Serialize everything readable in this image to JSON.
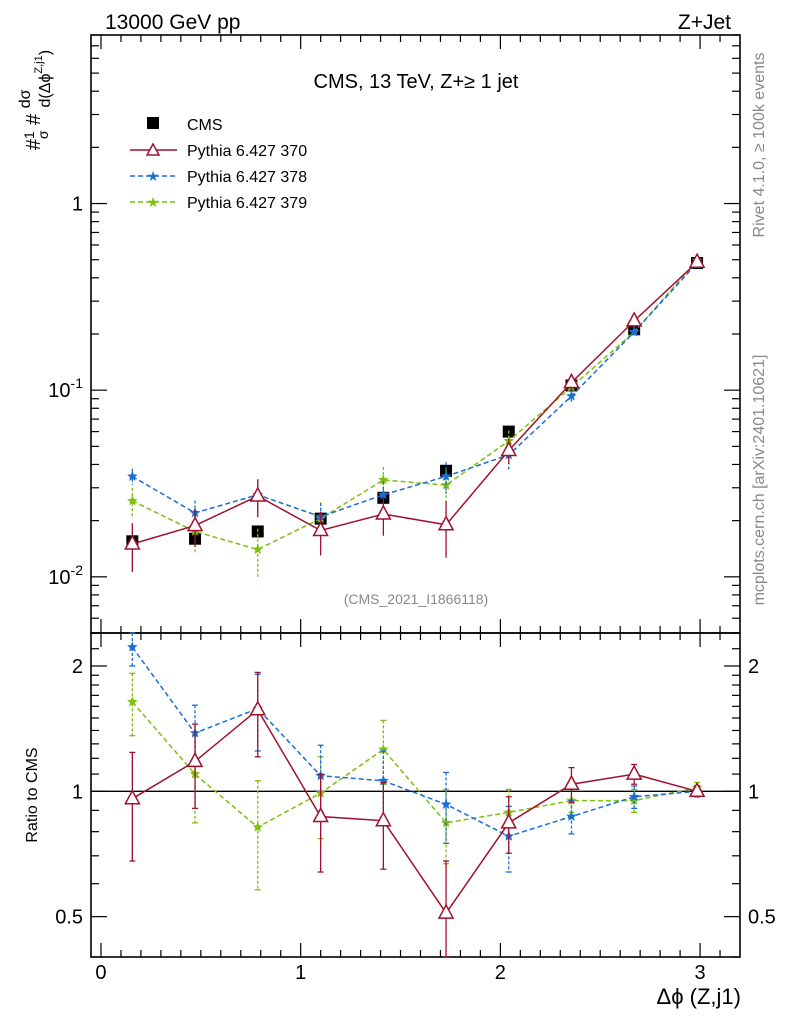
{
  "header": {
    "energy": "13000 GeV pp",
    "process": "Z+Jet"
  },
  "side": {
    "rivet": "Rivet 4.1.0, ≥ 100k events",
    "mcplots": "mcplots.cern.ch [arXiv:2401.10621]"
  },
  "chart_data": {
    "type": "line",
    "title": "CMS, 13 TeV, Z+≥ 1 jet",
    "analysis": "(CMS_2021_I1866118)",
    "xlabel": "Δϕ (Z,j1)",
    "ylabel": "#1/σ # dσ/d(Δϕ^{Z,j1})",
    "ratio_ylabel": "Ratio to CMS",
    "xlim": [
      -0.05,
      3.2
    ],
    "ylim": [
      0.005,
      8
    ],
    "yscale": "log",
    "ratio_ylim": [
      0.4,
      2.4
    ],
    "x_ticks": [
      "0",
      "1",
      "2",
      "3"
    ],
    "y_ticks": [
      "10^-2",
      "10^-1",
      "1"
    ],
    "ratio_ticks": [
      "0.5",
      "1",
      "2"
    ],
    "x": [
      0.157,
      0.471,
      0.785,
      1.1,
      1.414,
      1.728,
      2.042,
      2.356,
      2.67,
      2.985
    ],
    "data": {
      "name": "CMS",
      "values": [
        0.0155,
        0.016,
        0.0175,
        0.0205,
        0.0265,
        0.037,
        0.06,
        0.106,
        0.212,
        0.48
      ],
      "errors": [
        0.0008,
        0.0008,
        0.0009,
        0.001,
        0.0013,
        0.0018,
        0.0025,
        0.004,
        0.007,
        0.014
      ]
    },
    "series": [
      {
        "name": "Pythia 6.427 370",
        "color": "#a0102e",
        "style": "solid",
        "marker": "open-triangle",
        "values": [
          0.015,
          0.0188,
          0.0271,
          0.0177,
          0.0217,
          0.019,
          0.0475,
          0.11,
          0.235,
          0.485
        ],
        "ratio": [
          0.96,
          1.18,
          1.57,
          0.87,
          0.85,
          0.51,
          0.84,
          1.04,
          1.1,
          1.0
        ],
        "ratio_err": [
          0.28,
          0.27,
          0.36,
          0.23,
          0.2,
          0.17,
          0.13,
          0.1,
          0.06,
          0.03
        ]
      },
      {
        "name": "Pythia 6.427 378",
        "color": "#1a6fd4",
        "style": "dashed",
        "marker": "star",
        "values": [
          0.0345,
          0.022,
          0.0275,
          0.021,
          0.0275,
          0.0345,
          0.045,
          0.093,
          0.205,
          0.48
        ],
        "ratio": [
          2.22,
          1.38,
          1.58,
          1.09,
          1.06,
          0.93,
          0.78,
          0.87,
          0.97,
          1.0
        ],
        "ratio_err": [
          0.22,
          0.23,
          0.33,
          0.2,
          0.19,
          0.18,
          0.14,
          0.08,
          0.06,
          0.03
        ]
      },
      {
        "name": "Pythia 6.427 379",
        "color": "#7fbf10",
        "style": "dashed",
        "marker": "star",
        "values": [
          0.0255,
          0.0175,
          0.014,
          0.0205,
          0.033,
          0.031,
          0.0535,
          0.104,
          0.205,
          0.495
        ],
        "ratio": [
          1.64,
          1.1,
          0.82,
          0.99,
          1.26,
          0.84,
          0.89,
          0.95,
          0.95,
          1.02
        ],
        "ratio_err": [
          0.28,
          0.26,
          0.24,
          0.22,
          0.22,
          0.17,
          0.12,
          0.06,
          0.06,
          0.03
        ]
      }
    ]
  }
}
